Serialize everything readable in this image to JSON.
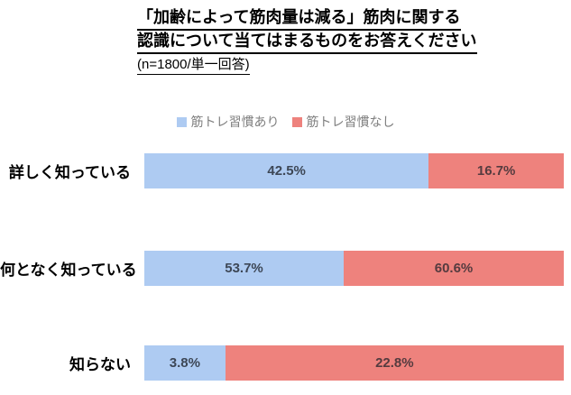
{
  "title": {
    "line1": "「加齢によって筋肉量は減る」筋肉に関する",
    "line2": "認識について当てはまるものをお答えください",
    "note": "(n=1800/単一回答)"
  },
  "colors": {
    "series_yes": "#aecbf2",
    "series_no": "#ee827d",
    "legend_text": "#7f7f7f"
  },
  "legend": {
    "items": [
      {
        "label": "筋トレ習慣あり"
      },
      {
        "label": "筋トレ習慣なし"
      }
    ]
  },
  "chart_data": {
    "type": "bar",
    "orientation": "horizontal",
    "stacked": true,
    "row_normalized": true,
    "title": "「加齢によって筋肉量は減る」筋肉に関する認識について当てはまるものをお答えください",
    "subtitle": "(n=1800/単一回答)",
    "legend_position": "top-center",
    "grid": false,
    "categories": [
      "詳しく知っている",
      "何となく知っている",
      "知らない"
    ],
    "series": [
      {
        "name": "筋トレ習慣あり",
        "color": "#aecbf2",
        "values": [
          42.5,
          53.7,
          3.8
        ]
      },
      {
        "name": "筋トレ習慣なし",
        "color": "#ee827d",
        "values": [
          16.7,
          60.6,
          22.8
        ]
      }
    ],
    "value_labels": [
      [
        "42.5%",
        "16.7%"
      ],
      [
        "53.7%",
        "60.6%"
      ],
      [
        "3.8%",
        "22.8%"
      ]
    ]
  },
  "rows": [
    {
      "category": "詳しく知っている",
      "yes": 42.5,
      "yes_label": "42.5%",
      "no": 16.7,
      "no_label": "16.7%"
    },
    {
      "category": "何となく知っている",
      "yes": 53.7,
      "yes_label": "53.7%",
      "no": 60.6,
      "no_label": "60.6%"
    },
    {
      "category": "知らない",
      "yes": 3.8,
      "yes_label": "3.8%",
      "no": 22.8,
      "no_label": "22.8%"
    }
  ]
}
